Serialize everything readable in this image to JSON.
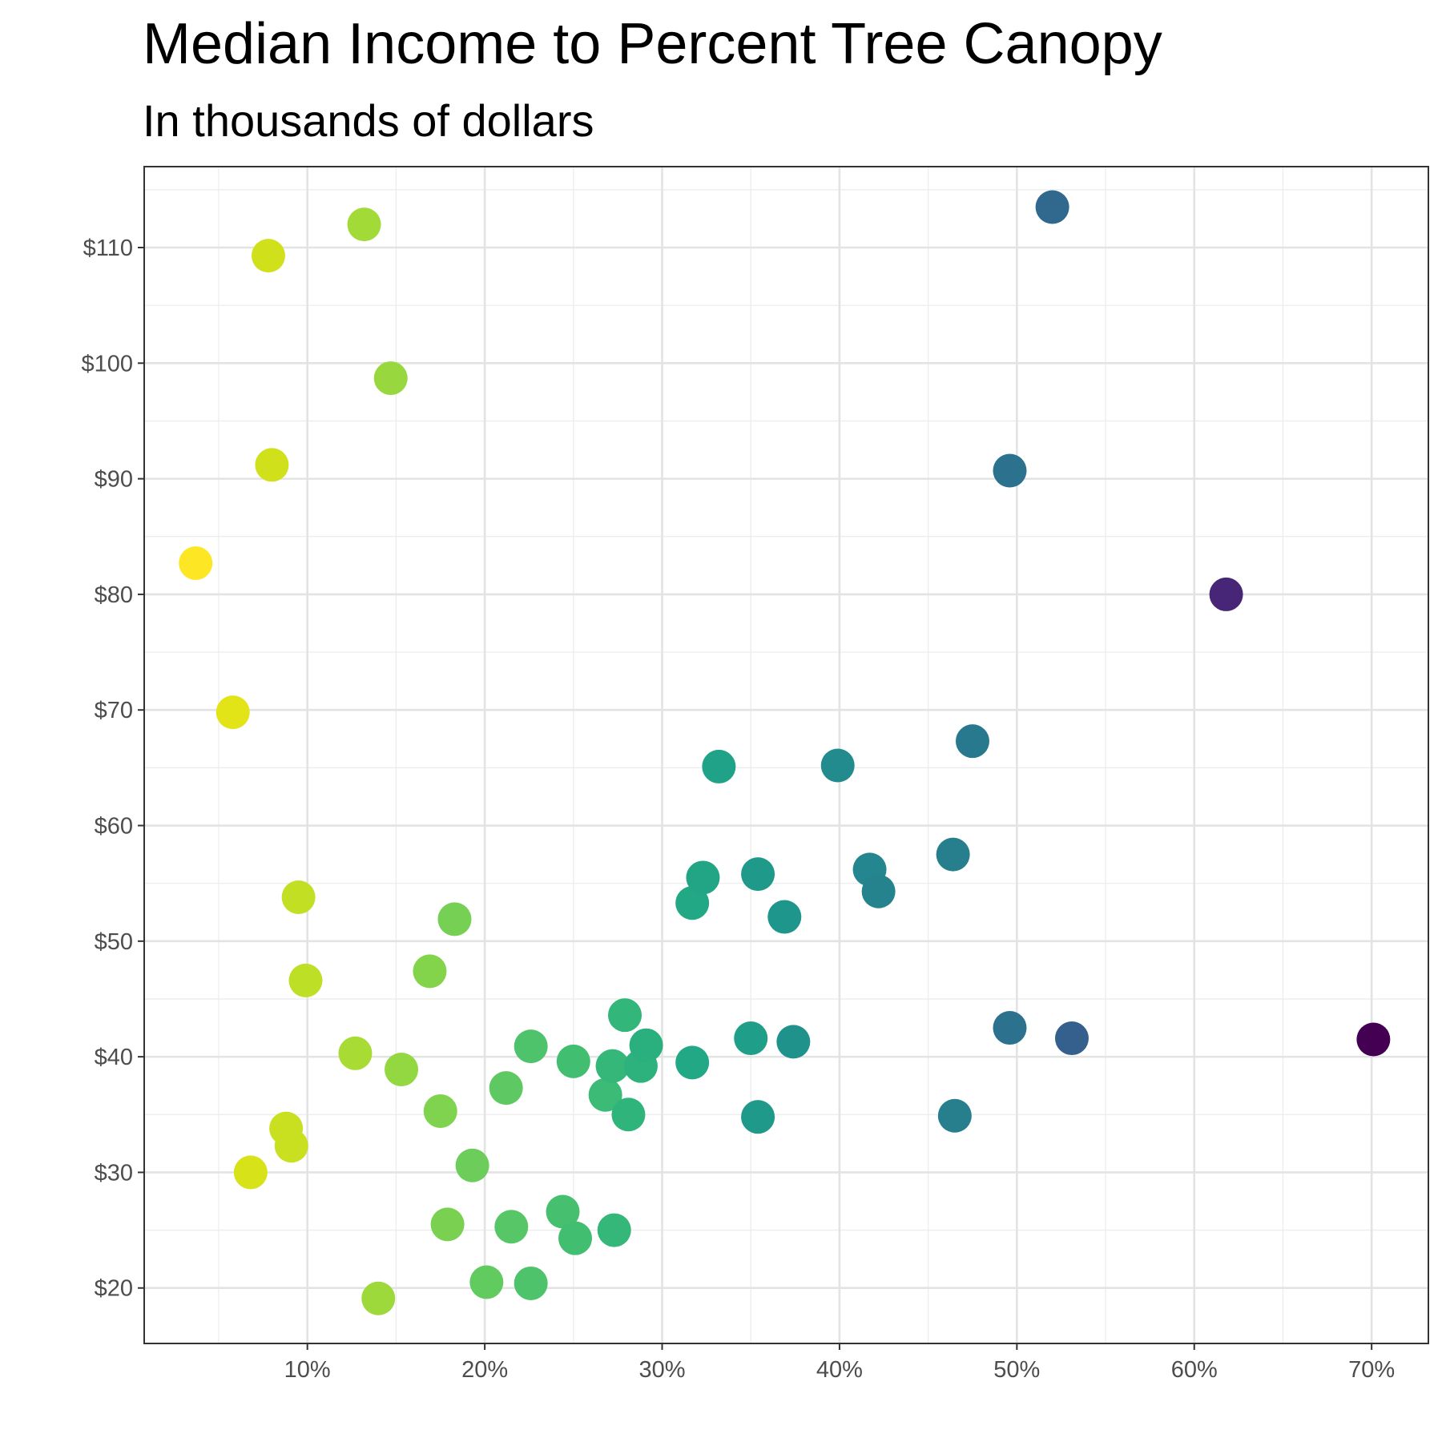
{
  "chart_data": {
    "type": "scatter",
    "title": "Median Income to Percent Tree Canopy",
    "subtitle": "In thousands of dollars",
    "xlabel": "",
    "ylabel": "",
    "x_ticks": [
      10,
      20,
      30,
      40,
      50,
      60,
      70
    ],
    "x_tick_labels": [
      "10%",
      "20%",
      "30%",
      "40%",
      "50%",
      "60%",
      "70%"
    ],
    "y_ticks": [
      20,
      30,
      40,
      50,
      60,
      70,
      80,
      90,
      100,
      110
    ],
    "y_tick_labels": [
      "$20",
      "$30",
      "$40",
      "$50",
      "$60",
      "$70",
      "$80",
      "$90",
      "$100",
      "$110"
    ],
    "xlim": [
      0.8,
      73.2
    ],
    "ylim": [
      15.2,
      117.0
    ],
    "grid": true,
    "legend": "none",
    "color_scale": "viridis (darker = higher tree canopy)",
    "points": [
      {
        "x": 3.7,
        "y": 82.7,
        "color": "#fde725"
      },
      {
        "x": 5.8,
        "y": 69.8,
        "color": "#e2e418"
      },
      {
        "x": 6.8,
        "y": 30.0,
        "color": "#d8e219"
      },
      {
        "x": 7.8,
        "y": 109.3,
        "color": "#d0e11c"
      },
      {
        "x": 8.0,
        "y": 91.2,
        "color": "#d0e11c"
      },
      {
        "x": 8.8,
        "y": 33.8,
        "color": "#c8e020"
      },
      {
        "x": 9.1,
        "y": 32.3,
        "color": "#c8e020"
      },
      {
        "x": 9.5,
        "y": 53.8,
        "color": "#c2df23"
      },
      {
        "x": 9.9,
        "y": 46.6,
        "color": "#bddf26"
      },
      {
        "x": 12.7,
        "y": 40.3,
        "color": "#a8db34"
      },
      {
        "x": 13.2,
        "y": 112.0,
        "color": "#a2da37"
      },
      {
        "x": 14.0,
        "y": 19.1,
        "color": "#9dd93b"
      },
      {
        "x": 14.7,
        "y": 98.7,
        "color": "#98d83e"
      },
      {
        "x": 15.3,
        "y": 38.9,
        "color": "#93d741"
      },
      {
        "x": 16.9,
        "y": 47.4,
        "color": "#84d44b"
      },
      {
        "x": 17.5,
        "y": 35.3,
        "color": "#7fd34e"
      },
      {
        "x": 17.9,
        "y": 25.5,
        "color": "#7ad151"
      },
      {
        "x": 18.3,
        "y": 51.9,
        "color": "#75d054"
      },
      {
        "x": 19.3,
        "y": 30.6,
        "color": "#6ccd5a"
      },
      {
        "x": 20.1,
        "y": 20.5,
        "color": "#62cb5f"
      },
      {
        "x": 21.2,
        "y": 37.3,
        "color": "#5ec962"
      },
      {
        "x": 21.5,
        "y": 25.3,
        "color": "#56c667"
      },
      {
        "x": 22.6,
        "y": 40.9,
        "color": "#4ec36b"
      },
      {
        "x": 22.6,
        "y": 20.4,
        "color": "#4ec36b"
      },
      {
        "x": 24.4,
        "y": 26.6,
        "color": "#46c06f"
      },
      {
        "x": 25.0,
        "y": 39.6,
        "color": "#42be71"
      },
      {
        "x": 25.1,
        "y": 24.3,
        "color": "#42be71"
      },
      {
        "x": 26.8,
        "y": 36.7,
        "color": "#3bbb75"
      },
      {
        "x": 27.2,
        "y": 39.2,
        "color": "#35b779"
      },
      {
        "x": 27.3,
        "y": 25.0,
        "color": "#35b779"
      },
      {
        "x": 27.9,
        "y": 43.6,
        "color": "#32b67a"
      },
      {
        "x": 28.1,
        "y": 35.0,
        "color": "#2fb47c"
      },
      {
        "x": 28.8,
        "y": 39.2,
        "color": "#2db27d"
      },
      {
        "x": 29.1,
        "y": 41.0,
        "color": "#2ab07f"
      },
      {
        "x": 31.7,
        "y": 53.3,
        "color": "#22a884"
      },
      {
        "x": 31.7,
        "y": 39.5,
        "color": "#22a884"
      },
      {
        "x": 32.3,
        "y": 55.5,
        "color": "#21a585"
      },
      {
        "x": 33.2,
        "y": 65.1,
        "color": "#1fa287"
      },
      {
        "x": 35.0,
        "y": 41.6,
        "color": "#1f9e89"
      },
      {
        "x": 35.4,
        "y": 55.8,
        "color": "#1f9a8a"
      },
      {
        "x": 35.4,
        "y": 34.8,
        "color": "#1f9a8a"
      },
      {
        "x": 36.9,
        "y": 52.1,
        "color": "#1f968b"
      },
      {
        "x": 37.4,
        "y": 41.3,
        "color": "#20928c"
      },
      {
        "x": 39.9,
        "y": 65.2,
        "color": "#228b8d"
      },
      {
        "x": 41.7,
        "y": 56.2,
        "color": "#24868e"
      },
      {
        "x": 42.2,
        "y": 54.3,
        "color": "#25838e"
      },
      {
        "x": 46.4,
        "y": 57.5,
        "color": "#277f8e"
      },
      {
        "x": 46.5,
        "y": 34.9,
        "color": "#277f8e"
      },
      {
        "x": 47.5,
        "y": 67.3,
        "color": "#29798e"
      },
      {
        "x": 49.6,
        "y": 90.7,
        "color": "#2c718e"
      },
      {
        "x": 49.6,
        "y": 42.5,
        "color": "#2c718e"
      },
      {
        "x": 52.0,
        "y": 113.5,
        "color": "#31688e"
      },
      {
        "x": 53.1,
        "y": 41.6,
        "color": "#355f8d"
      },
      {
        "x": 61.8,
        "y": 80.0,
        "color": "#482677"
      },
      {
        "x": 70.1,
        "y": 41.5,
        "color": "#440154"
      }
    ]
  }
}
